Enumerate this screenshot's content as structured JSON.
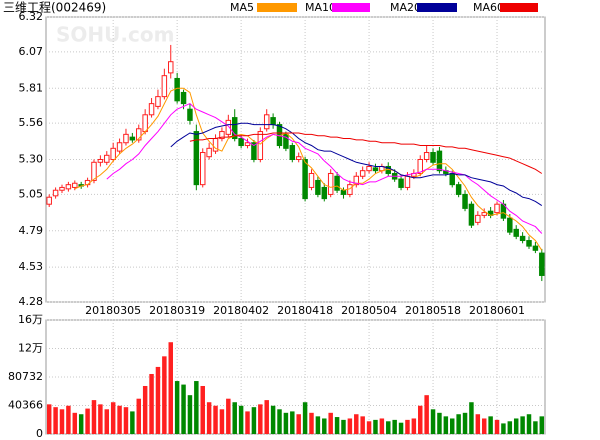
{
  "chart_data": {
    "type": "candlestick",
    "title": "三维工程(002469)",
    "watermark": "SOHU.com",
    "categories": [
      null,
      null,
      null,
      null,
      null,
      null,
      null,
      null,
      null,
      null,
      "20180305",
      null,
      null,
      null,
      null,
      null,
      null,
      null,
      null,
      null,
      "20180319",
      null,
      null,
      null,
      null,
      null,
      null,
      null,
      null,
      null,
      "20180402",
      null,
      null,
      null,
      null,
      null,
      null,
      null,
      null,
      null,
      "20180418",
      null,
      null,
      null,
      null,
      null,
      null,
      null,
      null,
      null,
      "20180504",
      null,
      null,
      null,
      null,
      null,
      null,
      null,
      null,
      null,
      "20180518",
      null,
      null,
      null,
      null,
      null,
      null,
      null,
      null,
      null,
      "20180601",
      null,
      null,
      null,
      null,
      null,
      null,
      null
    ],
    "open": [
      4.98,
      5.04,
      5.08,
      5.09,
      5.1,
      5.12,
      5.12,
      5.15,
      5.28,
      5.28,
      5.3,
      5.36,
      5.42,
      5.46,
      5.44,
      5.5,
      5.62,
      5.68,
      5.75,
      5.92,
      5.88,
      5.78,
      5.66,
      5.5,
      5.12,
      5.32,
      5.36,
      5.45,
      5.48,
      5.6,
      5.45,
      5.4,
      5.42,
      5.3,
      5.52,
      5.6,
      5.55,
      5.48,
      5.4,
      5.3,
      5.3,
      5.1,
      5.15,
      5.1,
      5.05,
      5.18,
      5.08,
      5.05,
      5.12,
      5.18,
      5.22,
      5.24,
      5.22,
      5.25,
      5.2,
      5.16,
      5.1,
      5.18,
      5.2,
      5.3,
      5.35,
      5.36,
      5.22,
      5.2,
      5.12,
      5.05,
      4.98,
      4.85,
      4.9,
      4.93,
      4.92,
      4.98,
      4.88,
      4.8,
      4.75,
      4.72,
      4.68,
      4.63
    ],
    "high": [
      5.05,
      5.1,
      5.12,
      5.14,
      5.15,
      5.14,
      5.17,
      5.3,
      5.33,
      5.36,
      5.42,
      5.45,
      5.52,
      5.49,
      5.55,
      5.66,
      5.74,
      5.8,
      5.95,
      6.12,
      5.92,
      5.8,
      5.7,
      5.55,
      5.38,
      5.42,
      5.48,
      5.53,
      5.62,
      5.66,
      5.48,
      5.45,
      5.44,
      5.53,
      5.66,
      5.63,
      5.57,
      5.5,
      5.42,
      5.35,
      5.32,
      5.23,
      5.18,
      5.13,
      5.23,
      5.21,
      5.1,
      5.15,
      5.21,
      5.25,
      5.28,
      5.27,
      5.27,
      5.28,
      5.23,
      5.19,
      5.21,
      5.23,
      5.33,
      5.4,
      5.38,
      5.39,
      5.25,
      5.22,
      5.14,
      5.08,
      5.0,
      4.93,
      4.95,
      4.96,
      5.0,
      5.01,
      4.91,
      4.83,
      4.78,
      4.75,
      4.71,
      4.66
    ],
    "low": [
      4.96,
      5.02,
      5.06,
      5.07,
      5.08,
      5.09,
      5.1,
      5.13,
      5.25,
      5.26,
      5.28,
      5.34,
      5.4,
      5.42,
      5.42,
      5.48,
      5.6,
      5.66,
      5.73,
      5.88,
      5.7,
      5.66,
      5.55,
      5.08,
      5.1,
      5.3,
      5.34,
      5.43,
      5.46,
      5.43,
      5.38,
      5.38,
      5.28,
      5.28,
      5.5,
      5.52,
      5.38,
      5.36,
      5.28,
      5.28,
      5.0,
      5.08,
      5.03,
      5.0,
      5.03,
      5.06,
      5.02,
      5.03,
      5.1,
      5.16,
      5.2,
      5.2,
      5.2,
      5.18,
      5.14,
      5.08,
      5.08,
      5.16,
      5.18,
      5.28,
      5.26,
      5.2,
      5.18,
      5.1,
      5.03,
      4.93,
      4.81,
      4.83,
      4.88,
      4.88,
      4.9,
      4.86,
      4.76,
      4.73,
      4.7,
      4.66,
      4.63,
      4.43
    ],
    "close": [
      5.03,
      5.08,
      5.1,
      5.12,
      5.13,
      5.11,
      5.15,
      5.28,
      5.3,
      5.33,
      5.38,
      5.42,
      5.48,
      5.44,
      5.52,
      5.62,
      5.7,
      5.75,
      5.9,
      6.0,
      5.72,
      5.7,
      5.58,
      5.12,
      5.35,
      5.38,
      5.45,
      5.5,
      5.58,
      5.45,
      5.4,
      5.42,
      5.3,
      5.5,
      5.62,
      5.55,
      5.4,
      5.38,
      5.3,
      5.32,
      5.02,
      5.2,
      5.05,
      5.02,
      5.2,
      5.08,
      5.05,
      5.12,
      5.18,
      5.22,
      5.25,
      5.22,
      5.25,
      5.2,
      5.16,
      5.1,
      5.18,
      5.2,
      5.3,
      5.35,
      5.28,
      5.22,
      5.2,
      5.12,
      5.05,
      4.95,
      4.83,
      4.9,
      4.92,
      4.9,
      4.98,
      4.88,
      4.78,
      4.75,
      4.72,
      4.68,
      4.65,
      4.47
    ],
    "up_color": "#ff2020",
    "down_color": "#008800",
    "ylim": [
      4.28,
      6.32
    ],
    "yticks": [
      4.28,
      4.53,
      4.79,
      5.05,
      {
        "value": 5.3,
        "label": "5.30"
      },
      5.56,
      5.81,
      6.07,
      6.32
    ],
    "grid": true,
    "series": [
      {
        "name": "MA5",
        "color": "#ff9900",
        "values": [
          null,
          null,
          null,
          null,
          5.09,
          5.11,
          5.12,
          5.16,
          5.19,
          5.23,
          5.29,
          5.34,
          5.38,
          5.41,
          5.45,
          5.5,
          5.55,
          5.61,
          5.7,
          5.79,
          5.81,
          5.81,
          5.78,
          5.62,
          5.49,
          5.43,
          5.38,
          5.36,
          5.45,
          5.47,
          5.48,
          5.47,
          5.43,
          5.41,
          5.45,
          5.48,
          5.47,
          5.49,
          5.45,
          5.39,
          5.28,
          5.24,
          5.18,
          5.12,
          5.1,
          5.11,
          5.08,
          5.09,
          5.13,
          5.13,
          5.16,
          5.2,
          5.22,
          5.23,
          5.22,
          5.19,
          5.18,
          5.17,
          5.19,
          5.23,
          5.26,
          5.27,
          5.27,
          5.23,
          5.17,
          5.11,
          5.03,
          4.97,
          4.93,
          4.9,
          4.91,
          4.92,
          4.89,
          4.86,
          4.82,
          4.76,
          4.72,
          4.65
        ]
      },
      {
        "name": "MA10",
        "color": "#ff00ff",
        "values": [
          null,
          null,
          null,
          null,
          null,
          null,
          null,
          null,
          null,
          5.16,
          5.2,
          5.23,
          5.27,
          5.3,
          5.34,
          5.4,
          5.45,
          5.5,
          5.56,
          5.62,
          5.66,
          5.68,
          5.7,
          5.66,
          5.64,
          5.62,
          5.6,
          5.57,
          5.54,
          5.48,
          5.46,
          5.43,
          5.4,
          5.43,
          5.46,
          5.48,
          5.47,
          5.46,
          5.43,
          5.42,
          5.38,
          5.36,
          5.34,
          5.29,
          5.25,
          5.2,
          5.16,
          5.14,
          5.13,
          5.12,
          5.14,
          5.14,
          5.16,
          5.18,
          5.18,
          5.18,
          5.19,
          5.2,
          5.21,
          5.23,
          5.23,
          5.23,
          5.22,
          5.21,
          5.2,
          5.19,
          5.15,
          5.12,
          5.08,
          5.04,
          5.01,
          4.98,
          4.93,
          4.9,
          4.86,
          4.84,
          4.82,
          4.77
        ]
      },
      {
        "name": "MA20",
        "color": "#000099",
        "values": [
          null,
          null,
          null,
          null,
          null,
          null,
          null,
          null,
          null,
          null,
          null,
          null,
          null,
          null,
          null,
          null,
          null,
          null,
          null,
          5.39,
          5.43,
          5.46,
          5.49,
          5.48,
          5.49,
          5.51,
          5.53,
          5.54,
          5.55,
          5.55,
          5.56,
          5.56,
          5.55,
          5.55,
          5.55,
          5.55,
          5.54,
          5.52,
          5.49,
          5.45,
          5.42,
          5.4,
          5.37,
          5.36,
          5.36,
          5.34,
          5.32,
          5.3,
          5.28,
          5.27,
          5.26,
          5.25,
          5.25,
          5.24,
          5.22,
          5.19,
          5.18,
          5.17,
          5.17,
          5.18,
          5.19,
          5.19,
          5.19,
          5.2,
          5.19,
          5.19,
          5.17,
          5.16,
          5.15,
          5.14,
          5.12,
          5.11,
          5.08,
          5.06,
          5.03,
          5.02,
          5.0,
          4.97
        ]
      },
      {
        "name": "MA60",
        "color": "#ee0000",
        "values": [
          null,
          null,
          null,
          null,
          null,
          null,
          null,
          null,
          null,
          null,
          null,
          null,
          null,
          null,
          null,
          null,
          null,
          null,
          null,
          null,
          null,
          null,
          5.43,
          5.44,
          5.44,
          5.45,
          5.45,
          5.46,
          5.46,
          5.47,
          5.47,
          5.47,
          5.48,
          5.48,
          5.48,
          5.49,
          5.49,
          5.49,
          5.49,
          5.49,
          5.48,
          5.48,
          5.47,
          5.47,
          5.46,
          5.46,
          5.45,
          5.45,
          5.44,
          5.44,
          5.43,
          5.43,
          5.42,
          5.42,
          5.42,
          5.41,
          5.41,
          5.41,
          5.4,
          5.4,
          5.4,
          5.4,
          5.39,
          5.39,
          5.38,
          5.38,
          5.37,
          5.36,
          5.35,
          5.34,
          5.33,
          5.32,
          5.31,
          5.29,
          5.27,
          5.25,
          5.23,
          5.2
        ]
      }
    ],
    "volume": {
      "values": [
        42000,
        38000,
        35000,
        40000,
        30000,
        28000,
        36000,
        48000,
        42000,
        35000,
        45000,
        40000,
        38000,
        32000,
        50000,
        68000,
        85000,
        95000,
        110000,
        130000,
        75000,
        70000,
        55000,
        75000,
        68000,
        45000,
        40000,
        35000,
        50000,
        45000,
        40000,
        32000,
        38000,
        42000,
        48000,
        40000,
        35000,
        30000,
        32000,
        28000,
        45000,
        30000,
        25000,
        22000,
        30000,
        24000,
        20000,
        22000,
        28000,
        25000,
        18000,
        20000,
        22000,
        18000,
        20000,
        16000,
        20000,
        22000,
        40000,
        55000,
        35000,
        30000,
        25000,
        22000,
        28000,
        30000,
        45000,
        28000,
        22000,
        25000,
        20000,
        15000,
        18000,
        22000,
        25000,
        28000,
        18000,
        25000
      ],
      "ylim": [
        0,
        161464
      ],
      "yticks": [
        0,
        40366,
        80732,
        {
          "value": 121098,
          "label": "12万"
        },
        {
          "value": 161464,
          "label": "16万"
        }
      ]
    }
  }
}
